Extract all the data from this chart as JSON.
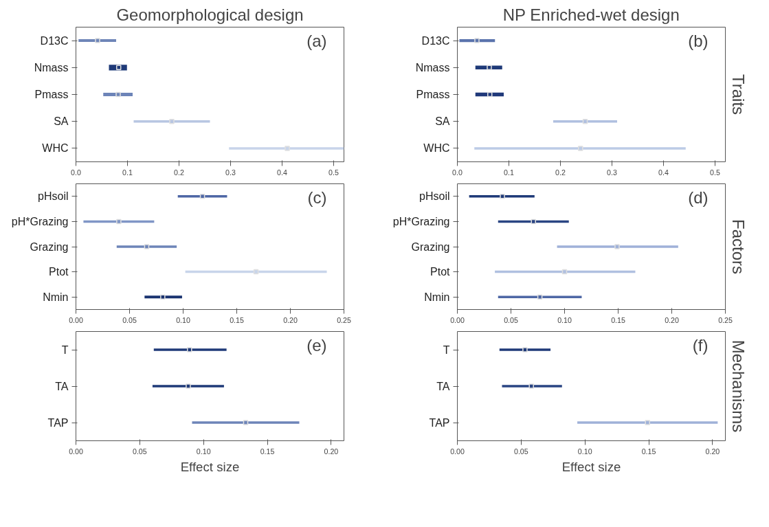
{
  "chart_data": [
    {
      "type": "scatter",
      "orientation": "horizontal",
      "title": "Geomorphological design",
      "annotations": [
        "(a)"
      ],
      "categories": [
        "D13C",
        "Nmass",
        "Pmass",
        "SA",
        "WHC"
      ],
      "values": [
        0.042,
        0.083,
        0.082,
        0.186,
        0.41
      ],
      "errors": [
        [
          0.005,
          0.078
        ],
        [
          0.064,
          0.099
        ],
        [
          0.053,
          0.11
        ],
        [
          0.112,
          0.26
        ],
        [
          0.297,
          0.52
        ]
      ],
      "colors": [
        "#6f86b8",
        "#1f3a78",
        "#6d84b8",
        "#b8c6e2",
        "#c8d4ea"
      ],
      "marker": "square",
      "xlim": [
        0,
        0.52
      ],
      "xticks": [
        {
          "value": 0,
          "label": "0.0"
        },
        0.1,
        0.2,
        0.3,
        0.4,
        0.5
      ],
      "grid": false,
      "legend": false
    },
    {
      "type": "scatter",
      "orientation": "horizontal",
      "title": "NP Enriched-wet design",
      "annotations": [
        "(b)",
        "Traits"
      ],
      "categories": [
        "D13C",
        "Nmass",
        "Pmass",
        "SA",
        "WHC"
      ],
      "values": [
        0.038,
        0.062,
        0.063,
        0.248,
        0.239
      ],
      "errors": [
        [
          0.004,
          0.073
        ],
        [
          0.035,
          0.087
        ],
        [
          0.035,
          0.09
        ],
        [
          0.186,
          0.31
        ],
        [
          0.033,
          0.443
        ]
      ],
      "colors": [
        "#5b74ad",
        "#1f3a78",
        "#20397a",
        "#b0c0e0",
        "#bccbe6"
      ],
      "marker": "square",
      "xlim": [
        0,
        0.52
      ],
      "xticks": [
        {
          "value": 0,
          "label": "0.0"
        },
        0.1,
        0.2,
        0.3,
        0.4,
        0.5
      ],
      "grid": false,
      "legend": false
    },
    {
      "type": "scatter",
      "orientation": "horizontal",
      "annotations": [
        "(c)"
      ],
      "categories": [
        "pHsoil",
        "pH*Grazing",
        "Grazing",
        "Ptot",
        "Nmin"
      ],
      "values": [
        0.118,
        0.04,
        0.066,
        0.168,
        0.081
      ],
      "errors": [
        [
          0.095,
          0.141
        ],
        [
          0.007,
          0.073
        ],
        [
          0.038,
          0.094
        ],
        [
          0.102,
          0.234
        ],
        [
          0.064,
          0.099
        ]
      ],
      "colors": [
        "#4e67a5",
        "#8096c6",
        "#6d84b8",
        "#c8d4ea",
        "#1a3370"
      ],
      "marker": "square",
      "xlim": [
        0,
        0.25
      ],
      "xticks": [
        {
          "value": 0,
          "label": "0.00"
        },
        0.05,
        {
          "value": 0.1,
          "label": "0.10"
        },
        0.15,
        {
          "value": 0.2,
          "label": "0.20"
        },
        0.25
      ],
      "grid": false,
      "legend": false
    },
    {
      "type": "scatter",
      "orientation": "horizontal",
      "annotations": [
        "(d)",
        "Factors"
      ],
      "categories": [
        "pHsoil",
        "pH*Grazing",
        "Grazing",
        "Ptot",
        "Nmin"
      ],
      "values": [
        0.042,
        0.071,
        0.149,
        0.1,
        0.077
      ],
      "errors": [
        [
          0.011,
          0.072
        ],
        [
          0.038,
          0.104
        ],
        [
          0.093,
          0.206
        ],
        [
          0.035,
          0.166
        ],
        [
          0.038,
          0.116
        ]
      ],
      "colors": [
        "#1f3a78",
        "#2a4583",
        "#9fb1d8",
        "#b0c0e0",
        "#4e67a5"
      ],
      "marker": "square",
      "xlim": [
        0,
        0.25
      ],
      "xticks": [
        {
          "value": 0,
          "label": "0.00"
        },
        0.05,
        {
          "value": 0.1,
          "label": "0.10"
        },
        0.15,
        {
          "value": 0.2,
          "label": "0.20"
        },
        0.25
      ],
      "grid": false,
      "legend": false
    },
    {
      "type": "scatter",
      "orientation": "horizontal",
      "xlabel": "Effect size",
      "annotations": [
        "(e)"
      ],
      "categories": [
        "T",
        "TA",
        "TAP"
      ],
      "values": [
        0.089,
        0.088,
        0.133
      ],
      "errors": [
        [
          0.061,
          0.118
        ],
        [
          0.06,
          0.116
        ],
        [
          0.091,
          0.175
        ]
      ],
      "colors": [
        "#1f3a78",
        "#1f3a78",
        "#6d84b8"
      ],
      "marker": "square",
      "xlim": [
        0,
        0.21
      ],
      "xticks": [
        {
          "value": 0,
          "label": "0.00"
        },
        0.05,
        {
          "value": 0.1,
          "label": "0.10"
        },
        0.15,
        {
          "value": 0.2,
          "label": "0.20"
        }
      ],
      "grid": false,
      "legend": false
    },
    {
      "type": "scatter",
      "orientation": "horizontal",
      "xlabel": "Effect size",
      "annotations": [
        "(f)",
        "Mechanisms"
      ],
      "categories": [
        "T",
        "TA",
        "TAP"
      ],
      "values": [
        0.053,
        0.058,
        0.149
      ],
      "errors": [
        [
          0.033,
          0.073
        ],
        [
          0.035,
          0.082
        ],
        [
          0.094,
          0.204
        ]
      ],
      "colors": [
        "#1f3a78",
        "#2a4583",
        "#9fb1d8"
      ],
      "marker": "square",
      "xlim": [
        0,
        0.21
      ],
      "xticks": [
        {
          "value": 0,
          "label": "0.00"
        },
        0.05,
        {
          "value": 0.1,
          "label": "0.10"
        },
        0.15,
        {
          "value": 0.2,
          "label": "0.20"
        }
      ],
      "grid": false,
      "legend": false
    }
  ]
}
